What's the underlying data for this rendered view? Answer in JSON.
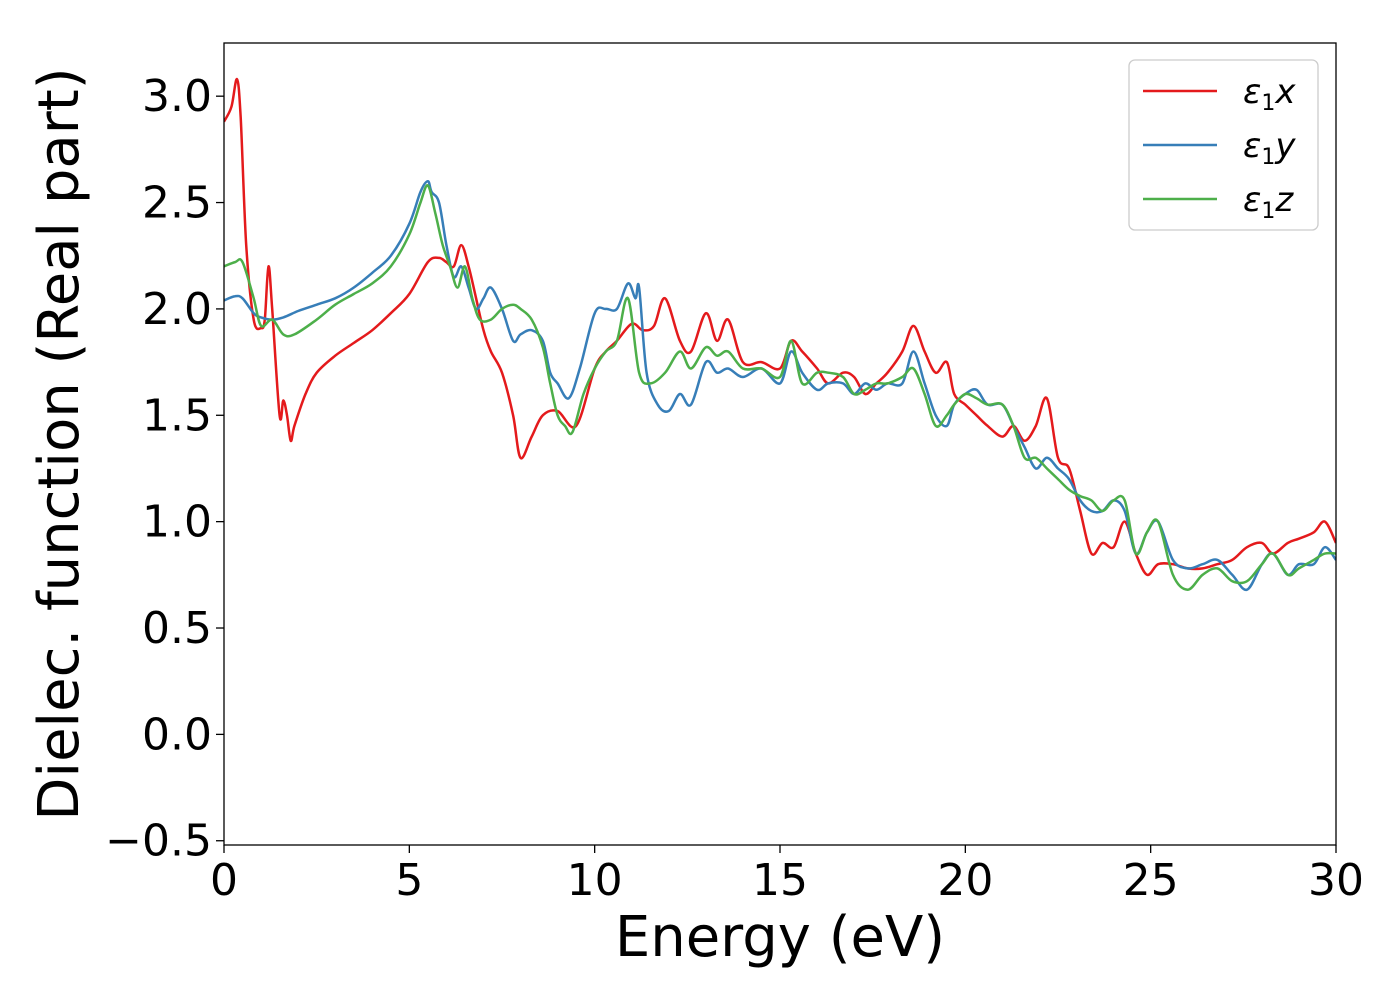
{
  "chart_data": {
    "type": "line",
    "xlabel": "Energy (eV)",
    "ylabel": "Dielec. function (Real part)",
    "xlim": [
      0,
      30
    ],
    "ylim": [
      -0.52,
      3.25
    ],
    "xticks": [
      0,
      5,
      10,
      15,
      20,
      25,
      30
    ],
    "xtick_labels": [
      "0",
      "5",
      "10",
      "15",
      "20",
      "25",
      "30"
    ],
    "yticks": [
      -0.5,
      0.0,
      0.5,
      1.0,
      1.5,
      2.0,
      2.5,
      3.0
    ],
    "ytick_labels": [
      "−0.5",
      "0.0",
      "0.5",
      "1.0",
      "1.5",
      "2.0",
      "2.5",
      "3.0"
    ],
    "grid": false,
    "legend_position": "top-right",
    "colors": {
      "x": "#e41a1c",
      "y": "#377eb8",
      "z": "#4daf4a"
    },
    "series": [
      {
        "key": "x",
        "name_main": "ε",
        "name_sub": "1",
        "name_comp": "x",
        "color": "#e41a1c",
        "x": [
          0,
          0.2,
          0.35,
          0.45,
          0.6,
          0.8,
          1.0,
          1.1,
          1.2,
          1.3,
          1.5,
          1.6,
          1.7,
          1.8,
          1.9,
          2.2,
          2.5,
          3,
          3.5,
          4,
          4.5,
          5,
          5.5,
          5.8,
          6.0,
          6.2,
          6.4,
          6.6,
          6.8,
          7.0,
          7.2,
          7.5,
          7.8,
          8.0,
          8.3,
          8.6,
          9.0,
          9.5,
          10.0,
          10.3,
          10.6,
          11.0,
          11.3,
          11.6,
          11.9,
          12.3,
          12.6,
          13.0,
          13.3,
          13.6,
          14.0,
          14.5,
          15.0,
          15.3,
          15.6,
          16.0,
          16.3,
          16.7,
          17.0,
          17.3,
          17.6,
          17.9,
          18.3,
          18.6,
          18.9,
          19.2,
          19.5,
          19.7,
          20.0,
          20.3,
          20.6,
          21.0,
          21.3,
          21.6,
          21.9,
          22.2,
          22.5,
          22.8,
          23.1,
          23.4,
          23.7,
          24.0,
          24.3,
          24.6,
          24.9,
          25.2,
          25.6,
          26.0,
          26.4,
          26.8,
          27.2,
          27.6,
          28.0,
          28.3,
          28.7,
          29.0,
          29.4,
          29.7,
          30.0
        ],
        "values": [
          2.88,
          2.95,
          3.08,
          2.9,
          2.3,
          1.95,
          1.91,
          1.95,
          2.2,
          2.0,
          1.5,
          1.57,
          1.5,
          1.38,
          1.45,
          1.6,
          1.7,
          1.78,
          1.84,
          1.9,
          1.98,
          2.07,
          2.22,
          2.24,
          2.22,
          2.2,
          2.3,
          2.2,
          2.05,
          1.9,
          1.8,
          1.7,
          1.5,
          1.3,
          1.4,
          1.5,
          1.52,
          1.45,
          1.72,
          1.8,
          1.85,
          1.93,
          1.9,
          1.92,
          2.05,
          1.85,
          1.8,
          1.98,
          1.85,
          1.95,
          1.75,
          1.75,
          1.72,
          1.85,
          1.8,
          1.72,
          1.65,
          1.7,
          1.68,
          1.6,
          1.65,
          1.7,
          1.8,
          1.92,
          1.8,
          1.7,
          1.75,
          1.6,
          1.55,
          1.5,
          1.45,
          1.4,
          1.45,
          1.38,
          1.45,
          1.58,
          1.3,
          1.25,
          1.05,
          0.85,
          0.9,
          0.88,
          1.0,
          0.85,
          0.75,
          0.8,
          0.8,
          0.78,
          0.78,
          0.8,
          0.82,
          0.88,
          0.9,
          0.85,
          0.9,
          0.92,
          0.95,
          1.0,
          0.9
        ]
      },
      {
        "key": "y",
        "name_main": "ε",
        "name_sub": "1",
        "name_comp": "y",
        "color": "#377eb8",
        "x": [
          0,
          0.3,
          0.5,
          0.8,
          1.0,
          1.3,
          1.6,
          2.0,
          2.5,
          3.0,
          3.5,
          4.0,
          4.5,
          5.0,
          5.3,
          5.5,
          5.6,
          5.8,
          6.0,
          6.2,
          6.4,
          6.6,
          6.8,
          7.0,
          7.2,
          7.5,
          7.8,
          8.0,
          8.3,
          8.6,
          8.8,
          9.0,
          9.3,
          9.6,
          10.0,
          10.3,
          10.6,
          10.9,
          11.1,
          11.2,
          11.4,
          11.7,
          12.0,
          12.3,
          12.6,
          13.0,
          13.3,
          13.6,
          14.0,
          14.5,
          15.0,
          15.3,
          15.6,
          16.0,
          16.3,
          16.7,
          17.0,
          17.3,
          17.6,
          17.9,
          18.3,
          18.6,
          18.9,
          19.2,
          19.5,
          19.7,
          20.0,
          20.3,
          20.6,
          21.0,
          21.3,
          21.6,
          21.9,
          22.2,
          22.5,
          22.8,
          23.1,
          23.4,
          23.7,
          24.0,
          24.3,
          24.6,
          24.9,
          25.2,
          25.6,
          26.0,
          26.4,
          26.8,
          27.2,
          27.6,
          28.0,
          28.3,
          28.7,
          29.0,
          29.4,
          29.7,
          30.0
        ],
        "values": [
          2.04,
          2.06,
          2.05,
          1.98,
          1.96,
          1.95,
          1.96,
          1.99,
          2.02,
          2.05,
          2.1,
          2.17,
          2.25,
          2.4,
          2.55,
          2.6,
          2.55,
          2.5,
          2.3,
          2.15,
          2.2,
          2.1,
          2.0,
          2.05,
          2.1,
          2.0,
          1.85,
          1.88,
          1.9,
          1.85,
          1.7,
          1.65,
          1.58,
          1.72,
          1.98,
          2.0,
          2.0,
          2.12,
          2.05,
          2.1,
          1.7,
          1.55,
          1.52,
          1.6,
          1.55,
          1.75,
          1.7,
          1.72,
          1.68,
          1.72,
          1.65,
          1.8,
          1.7,
          1.62,
          1.65,
          1.65,
          1.6,
          1.65,
          1.62,
          1.65,
          1.65,
          1.8,
          1.65,
          1.5,
          1.45,
          1.55,
          1.6,
          1.62,
          1.55,
          1.55,
          1.45,
          1.35,
          1.25,
          1.3,
          1.25,
          1.2,
          1.1,
          1.05,
          1.05,
          1.1,
          1.05,
          0.85,
          0.95,
          1.0,
          0.82,
          0.78,
          0.8,
          0.82,
          0.75,
          0.68,
          0.8,
          0.85,
          0.75,
          0.8,
          0.8,
          0.88,
          0.82
        ]
      },
      {
        "key": "z",
        "name_main": "ε",
        "name_sub": "1",
        "name_comp": "z",
        "color": "#4daf4a",
        "x": [
          0,
          0.3,
          0.5,
          0.8,
          1.0,
          1.3,
          1.6,
          1.9,
          2.5,
          3.0,
          3.5,
          4.0,
          4.5,
          5.0,
          5.3,
          5.5,
          5.7,
          5.9,
          6.1,
          6.3,
          6.5,
          6.7,
          6.9,
          7.2,
          7.5,
          7.8,
          8.0,
          8.3,
          8.6,
          8.8,
          9.0,
          9.2,
          9.4,
          9.7,
          10.0,
          10.3,
          10.6,
          10.9,
          11.2,
          11.5,
          11.9,
          12.3,
          12.6,
          13.0,
          13.3,
          13.6,
          14.0,
          14.5,
          15.0,
          15.3,
          15.6,
          16.0,
          16.3,
          16.7,
          17.0,
          17.3,
          17.6,
          17.9,
          18.3,
          18.6,
          18.9,
          19.2,
          19.5,
          19.7,
          20.0,
          20.3,
          20.6,
          21.0,
          21.3,
          21.6,
          21.9,
          22.2,
          22.5,
          22.8,
          23.1,
          23.4,
          23.7,
          24.0,
          24.3,
          24.6,
          24.9,
          25.2,
          25.6,
          26.0,
          26.4,
          26.8,
          27.2,
          27.6,
          28.0,
          28.3,
          28.7,
          29.0,
          29.4,
          29.7,
          30.0
        ],
        "values": [
          2.2,
          2.22,
          2.22,
          2.05,
          1.92,
          1.95,
          1.88,
          1.88,
          1.95,
          2.02,
          2.07,
          2.12,
          2.2,
          2.35,
          2.5,
          2.58,
          2.45,
          2.3,
          2.2,
          2.1,
          2.2,
          2.05,
          1.95,
          1.95,
          2.0,
          2.02,
          2.0,
          1.95,
          1.82,
          1.65,
          1.5,
          1.45,
          1.42,
          1.6,
          1.72,
          1.8,
          1.85,
          2.05,
          1.7,
          1.65,
          1.7,
          1.8,
          1.72,
          1.82,
          1.78,
          1.8,
          1.72,
          1.72,
          1.68,
          1.85,
          1.65,
          1.7,
          1.7,
          1.68,
          1.6,
          1.62,
          1.65,
          1.65,
          1.68,
          1.72,
          1.6,
          1.45,
          1.5,
          1.55,
          1.6,
          1.58,
          1.55,
          1.55,
          1.45,
          1.3,
          1.3,
          1.25,
          1.2,
          1.15,
          1.12,
          1.1,
          1.05,
          1.1,
          1.1,
          0.85,
          0.95,
          1.0,
          0.75,
          0.68,
          0.75,
          0.78,
          0.72,
          0.72,
          0.8,
          0.85,
          0.75,
          0.78,
          0.82,
          0.85,
          0.85
        ]
      }
    ]
  }
}
